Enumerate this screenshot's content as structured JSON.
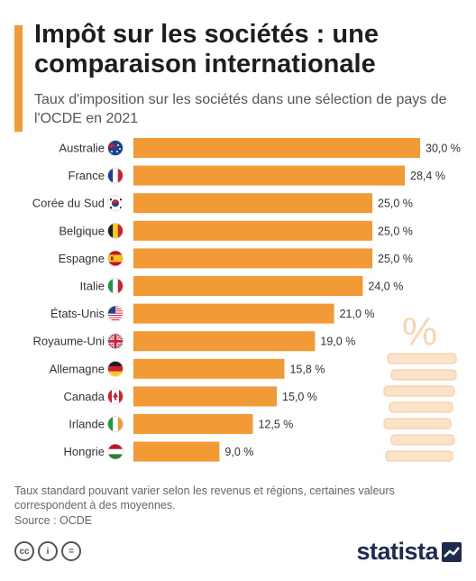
{
  "header": {
    "title": "Impôt sur les sociétés : une comparaison internationale",
    "subtitle": "Taux d'imposition sur les sociétés dans une sélection de pays de l'OCDE en 2021"
  },
  "chart_data": {
    "type": "bar",
    "orientation": "horizontal",
    "categories": [
      "Australie",
      "France",
      "Corée du Sud",
      "Belgique",
      "Espagne",
      "Italie",
      "États-Unis",
      "Royaume-Uni",
      "Allemagne",
      "Canada",
      "Irlande",
      "Hongrie"
    ],
    "values": [
      30.0,
      28.4,
      25.0,
      25.0,
      25.0,
      24.0,
      21.0,
      19.0,
      15.8,
      15.0,
      12.5,
      9.0
    ],
    "value_labels": [
      "30,0 %",
      "28,4 %",
      "25,0 %",
      "25,0 %",
      "25,0 %",
      "24,0 %",
      "21,0 %",
      "19,0 %",
      "15,8 %",
      "15,0 %",
      "12,5 %",
      "9,0 %"
    ],
    "flags": [
      "australia-flag-icon",
      "france-flag-icon",
      "south-korea-flag-icon",
      "belgium-flag-icon",
      "spain-flag-icon",
      "italy-flag-icon",
      "usa-flag-icon",
      "uk-flag-icon",
      "germany-flag-icon",
      "canada-flag-icon",
      "ireland-flag-icon",
      "hungary-flag-icon"
    ],
    "xlim": [
      0,
      30
    ],
    "bar_color": "#f29a35",
    "grid": false,
    "legend": "none"
  },
  "footer": {
    "note": "Taux standard pouvant varier selon les revenus et régions, certaines valeurs correspondent à des moyennes.",
    "source": "Source : OCDE",
    "cc_icons": [
      "cc-icon",
      "attribution-icon",
      "no-derivatives-icon"
    ],
    "cc_labels": [
      "cc",
      "i",
      "="
    ],
    "brand": "statista"
  },
  "decoration": {
    "symbol": "%"
  },
  "colors": {
    "accent": "#f29a35",
    "brand": "#1d2b4f"
  }
}
